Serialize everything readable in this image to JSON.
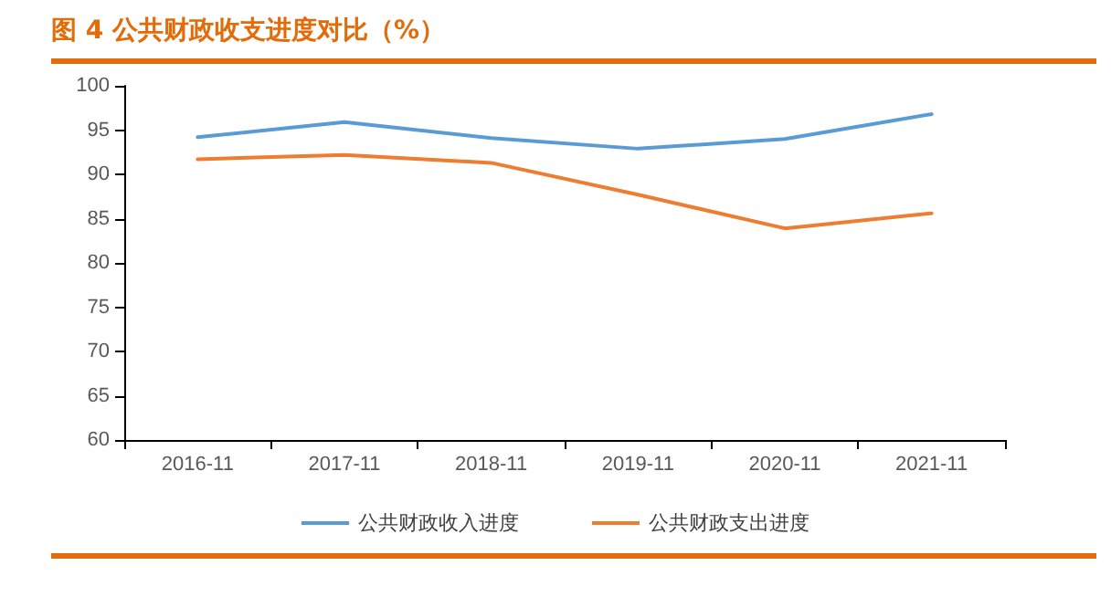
{
  "chart_data": {
    "type": "line",
    "title": "图 4  公共财政收支进度对比（%）",
    "categories": [
      "2016-11",
      "2017-11",
      "2018-11",
      "2019-11",
      "2020-11",
      "2021-11"
    ],
    "series": [
      {
        "name": "公共财政收入进度",
        "color": "#5b9bd5",
        "values": [
          94.2,
          95.9,
          94.1,
          92.9,
          94.0,
          96.8
        ]
      },
      {
        "name": "公共财政支出进度",
        "color": "#ed7d31",
        "values": [
          91.7,
          92.2,
          91.3,
          87.7,
          83.9,
          85.6
        ]
      }
    ],
    "ylim": [
      60,
      100
    ],
    "yticks": [
      60,
      65,
      70,
      75,
      80,
      85,
      90,
      95,
      100
    ],
    "grid": false,
    "legend": "bottom",
    "marker": "none",
    "line_style": "solid"
  }
}
